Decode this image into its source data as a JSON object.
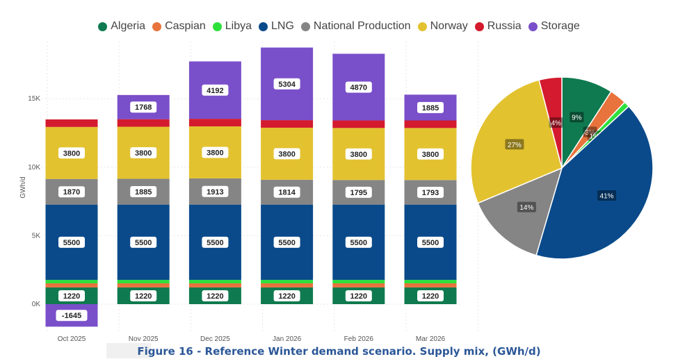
{
  "chart_data": [
    {
      "type": "bar",
      "stacked": true,
      "title": "",
      "xlabel": "",
      "ylabel": "GWh/d",
      "ylim": [
        -1800,
        19000
      ],
      "y_ticks": [
        {
          "value": 0,
          "label": "0K"
        },
        {
          "value": 5000,
          "label": "5K"
        },
        {
          "value": 10000,
          "label": "10K"
        },
        {
          "value": 15000,
          "label": "15K"
        }
      ],
      "categories": [
        "Oct 2025",
        "Nov 2025",
        "Dec 2025",
        "Jan 2026",
        "Feb 2026",
        "Mar 2026"
      ],
      "series": [
        {
          "name": "Algeria",
          "color": "#0f7a4f",
          "values": [
            1220,
            1220,
            1220,
            1220,
            1220,
            1220
          ],
          "show_labels": true
        },
        {
          "name": "Caspian",
          "color": "#e8733c",
          "values": [
            300,
            300,
            300,
            300,
            300,
            300
          ],
          "show_labels": false
        },
        {
          "name": "Libya",
          "color": "#2de03c",
          "values": [
            250,
            250,
            250,
            250,
            250,
            250
          ],
          "show_labels": false
        },
        {
          "name": "LNG",
          "color": "#0a4a8a",
          "values": [
            5500,
            5500,
            5500,
            5500,
            5500,
            5500
          ],
          "show_labels": true
        },
        {
          "name": "National Production",
          "color": "#858585",
          "values": [
            1870,
            1885,
            1913,
            1814,
            1795,
            1793
          ],
          "show_labels": true
        },
        {
          "name": "Norway",
          "color": "#e3c230",
          "values": [
            3800,
            3800,
            3800,
            3800,
            3800,
            3800
          ],
          "show_labels": true
        },
        {
          "name": "Russia",
          "color": "#d41a2e",
          "values": [
            550,
            550,
            550,
            550,
            550,
            550
          ],
          "show_labels": false
        },
        {
          "name": "Storage",
          "color": "#7a4fca",
          "values": [
            -1645,
            1768,
            4192,
            5304,
            4870,
            1885
          ],
          "show_labels": true
        }
      ]
    },
    {
      "type": "pie",
      "slices": [
        {
          "name": "Algeria",
          "value": 9,
          "label": "9%",
          "color": "#0f7a4f"
        },
        {
          "name": "Caspian",
          "value": 3,
          "label": "3%",
          "color": "#e8733c"
        },
        {
          "name": "Libya",
          "value": 1,
          "label": "1%",
          "color": "#2de03c"
        },
        {
          "name": "LNG",
          "value": 41,
          "label": "41%",
          "color": "#0a4a8a"
        },
        {
          "name": "National Production",
          "value": 14,
          "label": "14%",
          "color": "#858585"
        },
        {
          "name": "Norway",
          "value": 27,
          "label": "27%",
          "color": "#e3c230"
        },
        {
          "name": "Russia",
          "value": 4,
          "label": "4%",
          "color": "#d41a2e"
        }
      ]
    }
  ],
  "caption": "Figure 16 - Reference Winter demand scenario. Supply mix, (GWh/d)"
}
